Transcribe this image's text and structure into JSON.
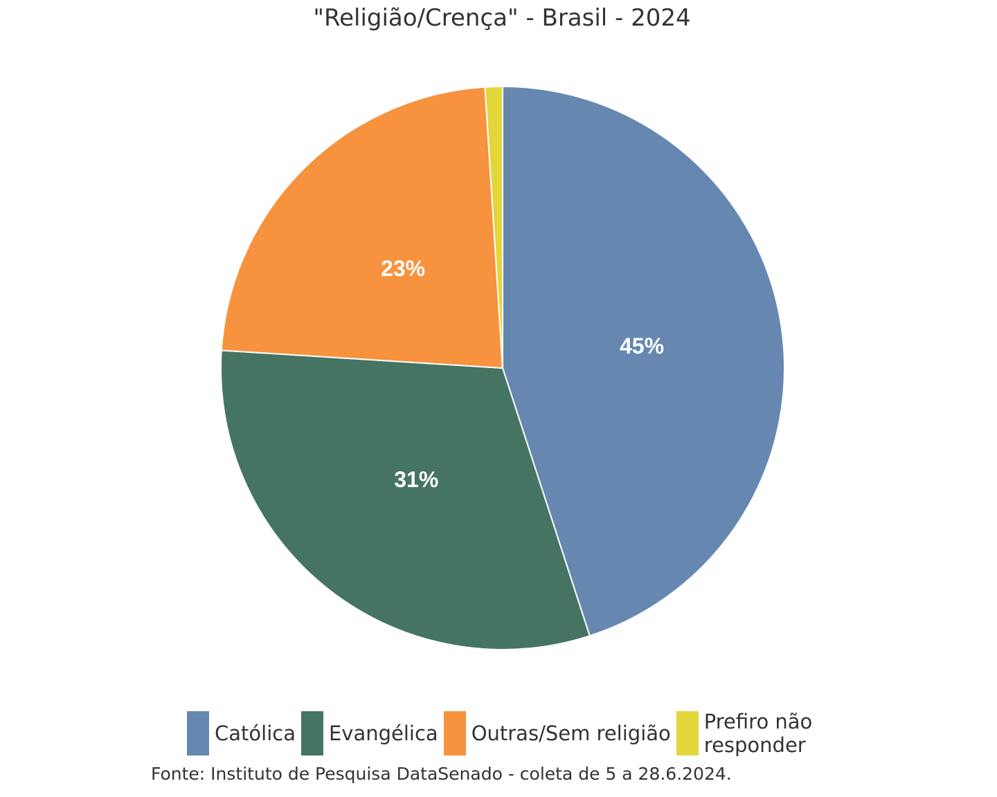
{
  "chart_data": {
    "type": "pie",
    "title": "\"Religião/Crença\" - Brasil - 2024",
    "categories": [
      "Católica",
      "Evangélica",
      "Outras/Sem religião",
      "Prefiro não responder"
    ],
    "values": [
      45,
      31,
      23,
      1
    ],
    "data_labels": [
      "45%",
      "31%",
      "23%",
      ""
    ],
    "colors": [
      "#6688b0",
      "#467463",
      "#f7923e",
      "#e3d63a"
    ],
    "unit": "%",
    "legend_position": "bottom",
    "start_angle": "12 o'clock",
    "direction": "clockwise"
  },
  "footer": {
    "source": "Fonte: Instituto de Pesquisa DataSenado - coleta de 5 a 28.6.2024."
  }
}
